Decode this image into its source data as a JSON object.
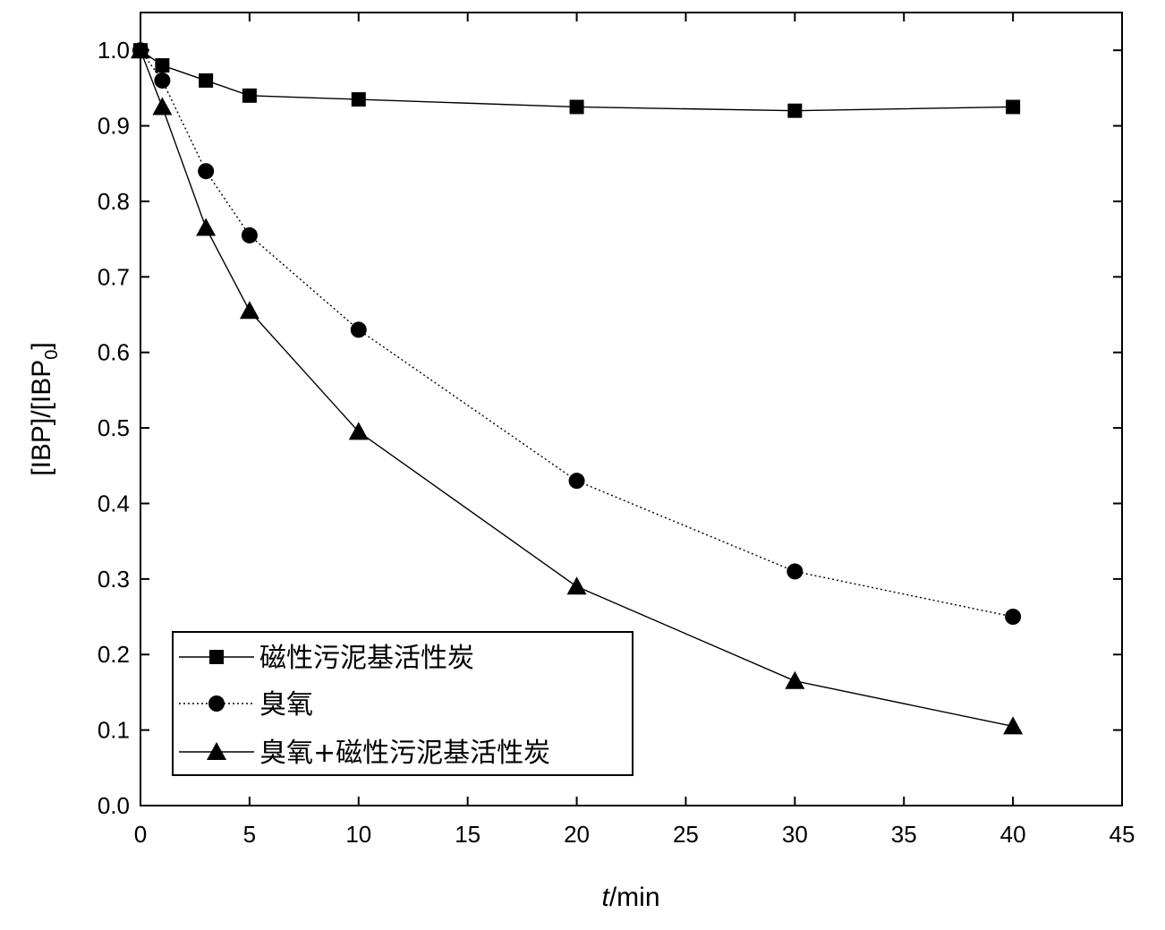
{
  "chart_data": {
    "type": "line",
    "title": "",
    "xlabel_italic": "t",
    "xlabel_rest": "/min",
    "ylabel_main": "[IBP]/[IBP",
    "ylabel_sub": "0",
    "ylabel_close": "]",
    "xlim": [
      0,
      45
    ],
    "ylim": [
      0.0,
      1.05
    ],
    "xticks": [
      0,
      5,
      10,
      15,
      20,
      25,
      30,
      35,
      40,
      45
    ],
    "xtick_labels": [
      "0",
      "5",
      "10",
      "15",
      "20",
      "25",
      "30",
      "35",
      "40",
      "45"
    ],
    "yticks": [
      0.0,
      0.1,
      0.2,
      0.3,
      0.4,
      0.5,
      0.6,
      0.7,
      0.8,
      0.9,
      1.0
    ],
    "ytick_labels": [
      "0.0",
      "0.1",
      "0.2",
      "0.3",
      "0.4",
      "0.5",
      "0.6",
      "0.7",
      "0.8",
      "0.9",
      "1.0"
    ],
    "grid": false,
    "legend_position": "bottom-left",
    "x": [
      0,
      1,
      3,
      5,
      10,
      20,
      30,
      40
    ],
    "series": [
      {
        "name": "磁性污泥基活性炭",
        "marker": "square",
        "line_style": "solid",
        "values": [
          1.0,
          0.98,
          0.96,
          0.94,
          0.935,
          0.925,
          0.92,
          0.925
        ]
      },
      {
        "name": "臭氧",
        "marker": "circle",
        "line_style": "dotted",
        "values": [
          1.0,
          0.96,
          0.84,
          0.755,
          0.63,
          0.43,
          0.31,
          0.25
        ]
      },
      {
        "name": "臭氧+磁性污泥基活性炭",
        "marker": "triangle",
        "line_style": "solid",
        "values": [
          1.0,
          0.925,
          0.765,
          0.655,
          0.495,
          0.29,
          0.165,
          0.105
        ]
      }
    ]
  }
}
